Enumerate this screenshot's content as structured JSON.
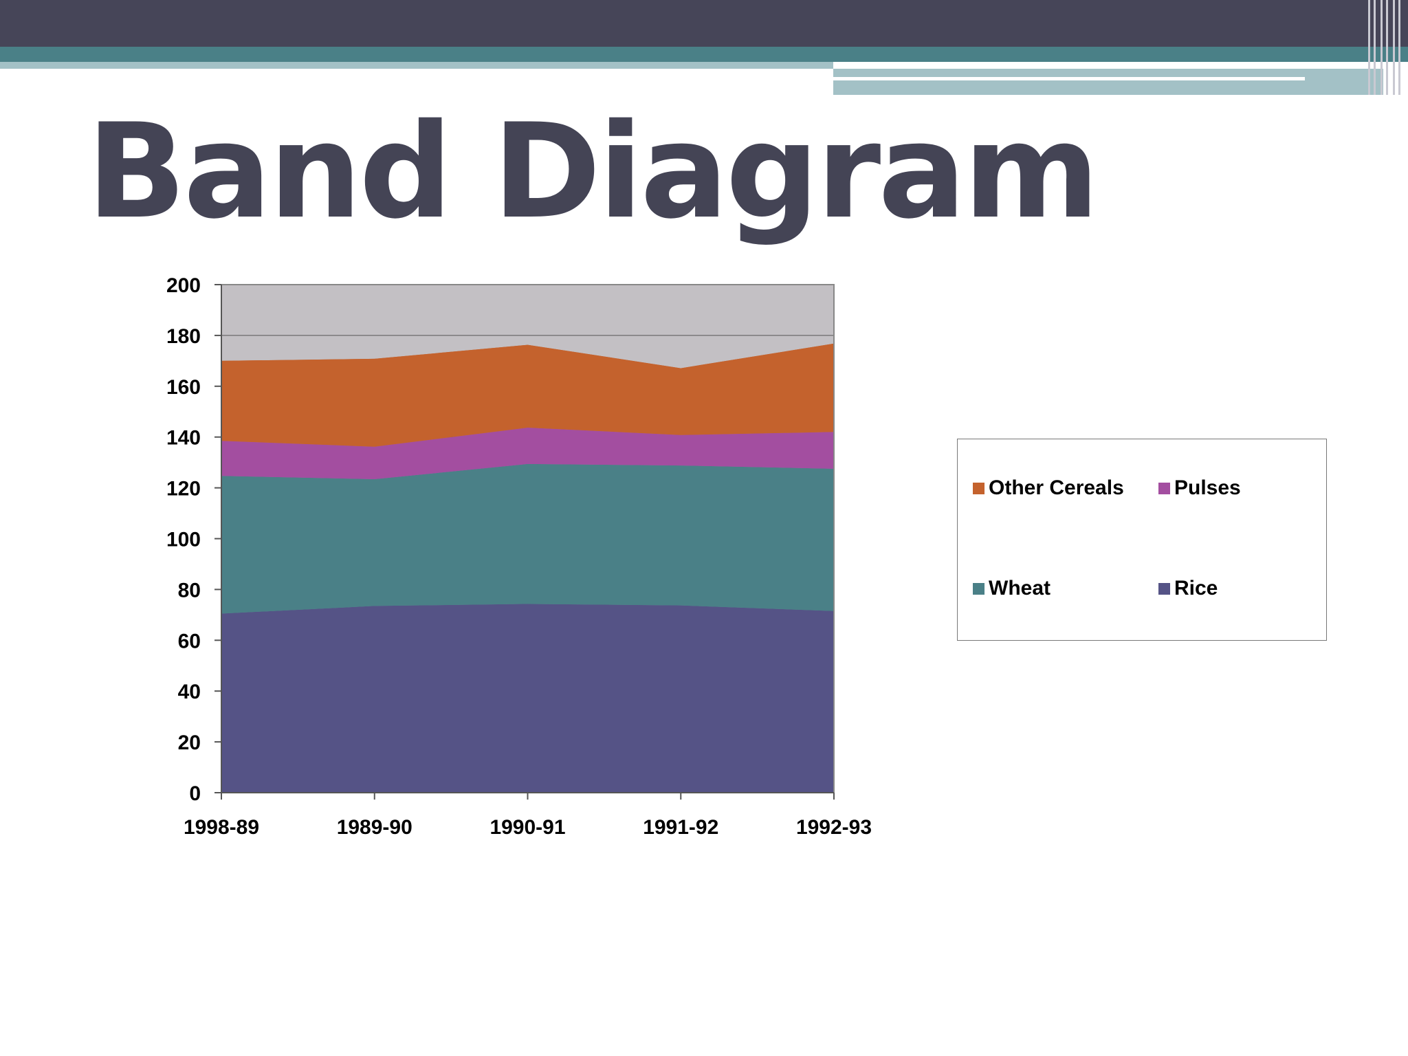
{
  "slide": {
    "title": "Band Diagram"
  },
  "colors": {
    "header_dark": "#464558",
    "header_teal": "#4a8087",
    "header_light": "#a3c1c6",
    "title_text": "#444455"
  },
  "chart_data": {
    "type": "area",
    "stacked": true,
    "categories": [
      "1998-89",
      "1989-90",
      "1990-91",
      "1991-92",
      "1992-93"
    ],
    "series": [
      {
        "name": "Rice",
        "values": [
          70.5,
          73.5,
          74.3,
          73.7,
          71.5
        ],
        "color": "#555386"
      },
      {
        "name": "Wheat",
        "values": [
          54.2,
          49.9,
          55.1,
          55.1,
          56.0
        ],
        "color": "#4a8087"
      },
      {
        "name": "Pulses",
        "values": [
          13.8,
          12.8,
          14.3,
          12.0,
          14.5
        ],
        "color": "#a34ea0"
      },
      {
        "name": "Other Cereals",
        "values": [
          31.5,
          34.6,
          32.6,
          26.3,
          34.8
        ],
        "color": "#c4622d"
      }
    ],
    "ylim": [
      0,
      200
    ],
    "yticks": [
      0,
      20,
      40,
      60,
      80,
      100,
      120,
      140,
      160,
      180,
      200
    ],
    "grid": "horizontal",
    "plot_background": "#c3c0c4",
    "legend_position": "right",
    "legend_order": [
      "Other Cereals",
      "Pulses",
      "Wheat",
      "Rice"
    ]
  }
}
